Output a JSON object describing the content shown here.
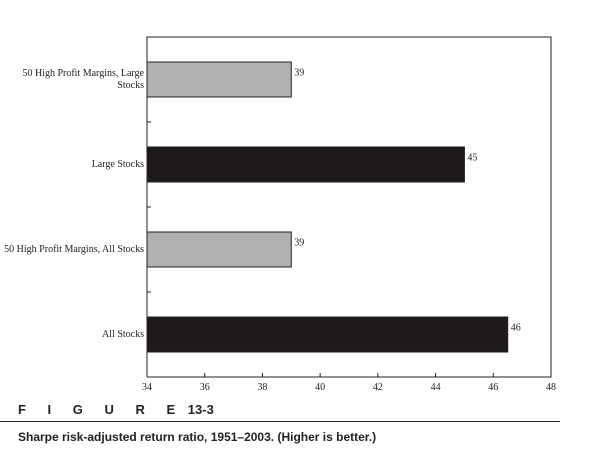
{
  "chart_data": {
    "type": "bar",
    "orientation": "horizontal",
    "categories": [
      "50 High Profit Margins, Large Stocks",
      "Large Stocks",
      "50 High Profit Margins, All Stocks",
      "All Stocks"
    ],
    "values": [
      39,
      45,
      39,
      46.5
    ],
    "data_labels": [
      "39",
      "45",
      "39",
      "46"
    ],
    "colors": [
      "#b0b0b0",
      "#1e1a1b",
      "#b0b0b0",
      "#1e1a1b"
    ],
    "xlim": [
      34,
      48
    ],
    "xticks": [
      34,
      36,
      38,
      40,
      42,
      44,
      46,
      48
    ],
    "grid": false,
    "legend": "none"
  },
  "figure": {
    "label_word": "F I G U R E",
    "label_number": "13-3",
    "caption": "Sharpe risk-adjusted return ratio, 1951–2003. (Higher is better.)"
  }
}
